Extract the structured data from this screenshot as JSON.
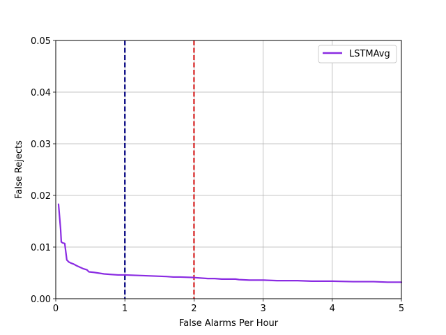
{
  "chart_data": {
    "type": "line",
    "xlabel": "False Alarms Per Hour",
    "ylabel": "False Rejects",
    "xlim": [
      0,
      5
    ],
    "ylim": [
      0,
      0.05
    ],
    "xticks": [
      0,
      1,
      2,
      3,
      4,
      5
    ],
    "xtick_labels": [
      "0",
      "1",
      "2",
      "3",
      "4",
      "5"
    ],
    "yticks": [
      0,
      0.01,
      0.02,
      0.03,
      0.04,
      0.05
    ],
    "ytick_labels": [
      "0.00",
      "0.01",
      "0.02",
      "0.03",
      "0.04",
      "0.05"
    ],
    "grid": true,
    "legend_position": "top-right",
    "series": [
      {
        "name": "LSTMAvg",
        "color": "#8a2be2",
        "x": [
          0.04,
          0.07,
          0.08,
          0.1,
          0.13,
          0.16,
          0.19,
          0.22,
          0.26,
          0.3,
          0.35,
          0.4,
          0.45,
          0.48,
          0.55,
          0.6,
          0.7,
          0.8,
          0.9,
          1.0,
          1.2,
          1.4,
          1.6,
          1.7,
          1.8,
          2.0,
          2.2,
          2.3,
          2.4,
          2.6,
          2.65,
          2.8,
          3.0,
          3.2,
          3.5,
          3.7,
          4.0,
          4.3,
          4.6,
          4.8,
          5.0
        ],
        "y": [
          0.0183,
          0.0135,
          0.011,
          0.0108,
          0.0107,
          0.0075,
          0.0071,
          0.0069,
          0.0067,
          0.0064,
          0.0061,
          0.0058,
          0.0056,
          0.0052,
          0.0051,
          0.005,
          0.0048,
          0.0047,
          0.0046,
          0.0046,
          0.0045,
          0.0044,
          0.0043,
          0.0042,
          0.0042,
          0.0041,
          0.0039,
          0.0039,
          0.0038,
          0.0038,
          0.0037,
          0.0036,
          0.0036,
          0.0035,
          0.0035,
          0.0034,
          0.0034,
          0.0033,
          0.0033,
          0.0032,
          0.0032
        ]
      }
    ],
    "vlines": [
      {
        "x": 1,
        "color": "#00007f",
        "style": "dashed"
      },
      {
        "x": 2,
        "color": "#d62020",
        "style": "dashed"
      }
    ]
  }
}
